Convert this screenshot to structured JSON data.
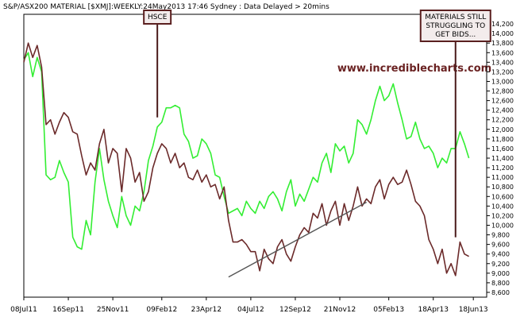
{
  "header_text": "S&P/ASX200 MATERIAL [$XMJ]:WEEKLY:24May2013 17:46 Sydney : Data Delayed > 20mins",
  "watermark": "www.incrediblecharts.com",
  "colors": {
    "background": "#ffffff",
    "frame": "#000000",
    "primary_series": "#6b2a2a",
    "comparison_series": "#33ee33",
    "trendline": "#555555",
    "annotation_box_border": "#5a1f1f",
    "annotation_box_fill": "#f3ecec",
    "annotation_line": "#4a1a1a"
  },
  "chart_data": {
    "type": "line",
    "title": "S&P/ASX200 MATERIAL [$XMJ]:WEEKLY:24May2013 17:46 Sydney : Data Delayed > 20mins",
    "xlabel": "",
    "ylabel": "",
    "x_ticks": [
      "08Jul11",
      "16Sep11",
      "25Nov11",
      "09Feb12",
      "23Apr12",
      "04Jul12",
      "12Sep12",
      "21Nov12",
      "05Feb13",
      "18Apr13",
      "18Jun13"
    ],
    "x_range": [
      0,
      104
    ],
    "x_tick_positions": [
      0,
      10,
      20,
      31,
      41,
      51,
      61,
      71,
      82,
      92,
      101
    ],
    "y_ticks": [
      8600,
      8800,
      9000,
      9200,
      9400,
      9600,
      9800,
      10000,
      10200,
      10400,
      10600,
      10800,
      11000,
      11200,
      11400,
      11600,
      11800,
      12000,
      12200,
      12400,
      12600,
      12800,
      13000,
      13200,
      13400,
      13600,
      13800,
      14000,
      14200
    ],
    "ylim": [
      8500,
      14400
    ],
    "y_scale": "linear",
    "grid": false,
    "series": [
      {
        "role": "primary",
        "color": "#6b2a2a",
        "values": [
          13400,
          13800,
          13500,
          13750,
          13300,
          12100,
          12200,
          11900,
          12150,
          12350,
          12250,
          11950,
          11900,
          11450,
          11050,
          11300,
          11150,
          11700,
          12000,
          11300,
          11600,
          11500,
          10700,
          11600,
          11400,
          10900,
          11100,
          10500,
          10700,
          11200,
          11500,
          11700,
          11600,
          11300,
          11500,
          11200,
          11300,
          11000,
          10950,
          11150,
          10900,
          11050,
          10800,
          10850,
          10550,
          10800,
          10100,
          9650,
          9650,
          9700,
          9600,
          9450,
          9450,
          9050,
          9500,
          9300,
          9200,
          9550,
          9700,
          9400,
          9250,
          9550,
          9800,
          9950,
          9850,
          10250,
          10150,
          10450,
          10000,
          10300,
          10500,
          10000,
          10450,
          10100,
          10400,
          10800,
          10400,
          10550,
          10450,
          10800,
          10950,
          10550,
          10850,
          11000,
          10850,
          10900,
          11150,
          10850,
          10500,
          10400,
          10200,
          9700,
          9500,
          9200,
          9500,
          9000,
          9200,
          8950,
          9650,
          9400,
          9350
        ]
      },
      {
        "role": "comparison",
        "color": "#33ee33",
        "values": [
          13450,
          13600,
          13100,
          13500,
          13200,
          11050,
          10950,
          11000,
          11350,
          11100,
          10900,
          9750,
          9550,
          9500,
          10100,
          9800,
          10900,
          11600,
          10950,
          10500,
          10200,
          9950,
          10600,
          10200,
          10000,
          10400,
          10300,
          10700,
          11350,
          11650,
          12050,
          12150,
          12450,
          12450,
          12500,
          12450,
          11900,
          11750,
          11400,
          11450,
          11800,
          11700,
          11500,
          11050,
          11000,
          10600,
          10250,
          10300,
          10350,
          10200,
          10500,
          10350,
          10250,
          10500,
          10350,
          10600,
          10700,
          10550,
          10300,
          10700,
          10950,
          10400,
          10650,
          10500,
          10750,
          11000,
          10900,
          11300,
          11500,
          11100,
          11700,
          11550,
          11650,
          11300,
          11500,
          12200,
          12100,
          11900,
          12200,
          12600,
          12900,
          12600,
          12700,
          12950,
          12550,
          12200,
          11800,
          11850,
          12150,
          11800,
          11600,
          11650,
          11500,
          11200,
          11400,
          11300,
          11600,
          11600,
          11950,
          11700,
          11400
        ]
      }
    ],
    "trendline": {
      "x": [
        46,
        77
      ],
      "y": [
        8920,
        10480
      ]
    },
    "annotations": [
      {
        "text": "HSCE",
        "x": 30,
        "y_target": 12250
      },
      {
        "text": "MATERIALS STILL\nSTRUGGLING TO\nGET BIDS...",
        "x": 97,
        "y_target": 9750
      }
    ]
  }
}
